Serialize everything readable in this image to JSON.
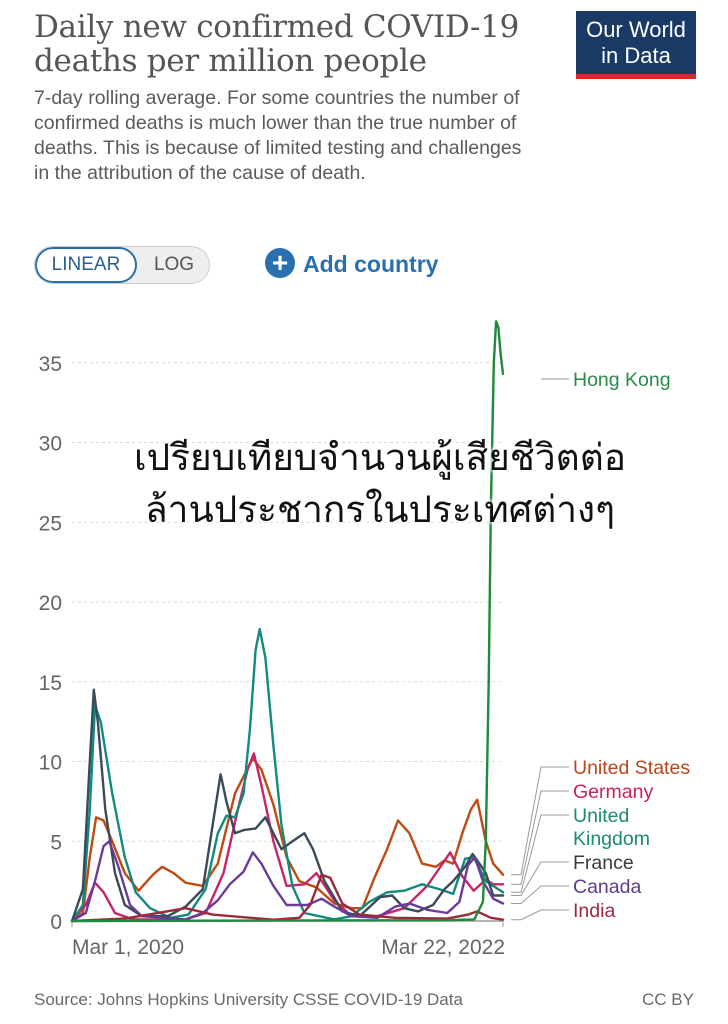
{
  "header": {
    "title": "Daily new confirmed COVID-19 deaths per million people",
    "subtitle": "7-day rolling average. For some countries the number of confirmed deaths is much lower than the true number of deaths. This is because of limited testing and challenges in the attribution of the cause of death.",
    "logo_line1": "Our World",
    "logo_line2": "in Data",
    "logo_bg": "#1a3a66",
    "logo_accent": "#d42b2b"
  },
  "controls": {
    "linear_label": "LINEAR",
    "log_label": "LOG",
    "add_country_label": "Add country",
    "add_icon": "plus-circle-icon",
    "accent": "#2a6fb0"
  },
  "overlay_text": {
    "line1": "เปรียบเทียบจำนวนผู้เสียชีวิตต่อ",
    "line2": "ล้านประชากรในประเทศต่างๆ"
  },
  "footer": {
    "source": "Source: Johns Hopkins University CSSE COVID-19 Data",
    "license": "CC BY"
  },
  "chart_data": {
    "type": "line",
    "title": "Daily new confirmed COVID-19 deaths per million people",
    "x_start_label": "Mar 1, 2020",
    "x_end_label": "Mar 22, 2022",
    "x_range": [
      "2020-03-01",
      "2022-03-22"
    ],
    "ylim": [
      0,
      38
    ],
    "y_ticks": [
      0,
      5,
      10,
      15,
      20,
      25,
      30,
      35
    ],
    "grid": "horizontal dashed",
    "legend": "right, labels at line ends",
    "series": [
      {
        "name": "Hong Kong",
        "color": "#1d8a3c",
        "label_color": "#2a8a4a",
        "points": [
          [
            "2020-03-01",
            0
          ],
          [
            "2021-12-15",
            0.05
          ],
          [
            "2022-01-31",
            0.1
          ],
          [
            "2022-02-15",
            1.2
          ],
          [
            "2022-02-20",
            5
          ],
          [
            "2022-02-25",
            15
          ],
          [
            "2022-03-01",
            26
          ],
          [
            "2022-03-06",
            35
          ],
          [
            "2022-03-10",
            37.6
          ],
          [
            "2022-03-14",
            37.2
          ],
          [
            "2022-03-18",
            35.5
          ],
          [
            "2022-03-22",
            34.3
          ]
        ]
      },
      {
        "name": "United States",
        "color": "#bf4a12",
        "label_color": "#b8461b",
        "points": [
          [
            "2020-03-01",
            0
          ],
          [
            "2020-03-20",
            0.5
          ],
          [
            "2020-04-01",
            4
          ],
          [
            "2020-04-12",
            6.5
          ],
          [
            "2020-04-25",
            6.3
          ],
          [
            "2020-05-10",
            5
          ],
          [
            "2020-06-01",
            3
          ],
          [
            "2020-06-25",
            1.9
          ],
          [
            "2020-07-20",
            2.9
          ],
          [
            "2020-08-05",
            3.4
          ],
          [
            "2020-08-25",
            3
          ],
          [
            "2020-09-15",
            2.4
          ],
          [
            "2020-10-15",
            2.2
          ],
          [
            "2020-11-10",
            3.6
          ],
          [
            "2020-12-10",
            8
          ],
          [
            "2021-01-10",
            10.2
          ],
          [
            "2021-01-25",
            9.5
          ],
          [
            "2021-02-15",
            7.3
          ],
          [
            "2021-03-10",
            4
          ],
          [
            "2021-04-01",
            2.5
          ],
          [
            "2021-05-01",
            2.1
          ],
          [
            "2021-06-01",
            1.1
          ],
          [
            "2021-07-01",
            0.8
          ],
          [
            "2021-07-20",
            0.8
          ],
          [
            "2021-08-10",
            2.7
          ],
          [
            "2021-09-01",
            4.5
          ],
          [
            "2021-09-20",
            6.3
          ],
          [
            "2021-10-10",
            5.5
          ],
          [
            "2021-11-01",
            3.6
          ],
          [
            "2021-11-25",
            3.4
          ],
          [
            "2021-12-10",
            3.8
          ],
          [
            "2021-12-25",
            3.6
          ],
          [
            "2022-01-10",
            5.5
          ],
          [
            "2022-01-25",
            7
          ],
          [
            "2022-02-05",
            7.6
          ],
          [
            "2022-02-20",
            5
          ],
          [
            "2022-03-05",
            3.6
          ],
          [
            "2022-03-22",
            2.9
          ]
        ]
      },
      {
        "name": "Germany",
        "color": "#c7246a",
        "label_color": "#c2245f",
        "points": [
          [
            "2020-03-01",
            0
          ],
          [
            "2020-03-25",
            1
          ],
          [
            "2020-04-10",
            2.4
          ],
          [
            "2020-04-25",
            1.8
          ],
          [
            "2020-05-15",
            0.5
          ],
          [
            "2020-06-15",
            0.1
          ],
          [
            "2020-09-15",
            0.1
          ],
          [
            "2020-10-20",
            0.5
          ],
          [
            "2020-11-20",
            3
          ],
          [
            "2020-12-15",
            7
          ],
          [
            "2021-01-01",
            9.5
          ],
          [
            "2021-01-12",
            10.5
          ],
          [
            "2021-01-25",
            8.5
          ],
          [
            "2021-02-15",
            5
          ],
          [
            "2021-03-10",
            2.2
          ],
          [
            "2021-04-10",
            2.3
          ],
          [
            "2021-05-01",
            3
          ],
          [
            "2021-06-01",
            1.3
          ],
          [
            "2021-07-01",
            0.3
          ],
          [
            "2021-08-15",
            0.3
          ],
          [
            "2021-10-01",
            0.8
          ],
          [
            "2021-11-10",
            2.2
          ],
          [
            "2021-12-01",
            3.3
          ],
          [
            "2021-12-20",
            4.3
          ],
          [
            "2022-01-10",
            2.8
          ],
          [
            "2022-01-30",
            1.9
          ],
          [
            "2022-02-20",
            2.6
          ],
          [
            "2022-03-05",
            2.3
          ],
          [
            "2022-03-22",
            2.3
          ]
        ]
      },
      {
        "name": "United Kingdom",
        "color": "#128a7e",
        "label_color": "#1a8a74",
        "points": [
          [
            "2020-03-01",
            0
          ],
          [
            "2020-03-20",
            1
          ],
          [
            "2020-04-01",
            7
          ],
          [
            "2020-04-10",
            13.5
          ],
          [
            "2020-04-20",
            12.5
          ],
          [
            "2020-05-10",
            8
          ],
          [
            "2020-06-01",
            4
          ],
          [
            "2020-06-20",
            1.8
          ],
          [
            "2020-07-15",
            0.8
          ],
          [
            "2020-08-20",
            0.2
          ],
          [
            "2020-09-20",
            0.4
          ],
          [
            "2020-10-20",
            2
          ],
          [
            "2020-11-10",
            5.5
          ],
          [
            "2020-11-25",
            6.6
          ],
          [
            "2020-12-10",
            6.5
          ],
          [
            "2020-12-25",
            8
          ],
          [
            "2021-01-05",
            12
          ],
          [
            "2021-01-15",
            17
          ],
          [
            "2021-01-22",
            18.3
          ],
          [
            "2021-02-01",
            16.5
          ],
          [
            "2021-02-15",
            11
          ],
          [
            "2021-03-01",
            6
          ],
          [
            "2021-03-20",
            2.2
          ],
          [
            "2021-04-10",
            0.5
          ],
          [
            "2021-06-01",
            0.1
          ],
          [
            "2021-07-01",
            0.3
          ],
          [
            "2021-08-01",
            1.2
          ],
          [
            "2021-09-01",
            1.8
          ],
          [
            "2021-10-01",
            1.9
          ],
          [
            "2021-11-01",
            2.3
          ],
          [
            "2021-12-01",
            2
          ],
          [
            "2021-12-25",
            1.7
          ],
          [
            "2022-01-15",
            3.9
          ],
          [
            "2022-01-30",
            4
          ],
          [
            "2022-02-20",
            2.5
          ],
          [
            "2022-03-22",
            1.8
          ]
        ]
      },
      {
        "name": "France",
        "color": "#3b4a5a",
        "label_color": "#3b3b3b",
        "points": [
          [
            "2020-03-01",
            0
          ],
          [
            "2020-03-20",
            2
          ],
          [
            "2020-04-01",
            10
          ],
          [
            "2020-04-08",
            14.5
          ],
          [
            "2020-04-15",
            12.5
          ],
          [
            "2020-04-28",
            7
          ],
          [
            "2020-05-15",
            3
          ],
          [
            "2020-06-01",
            1
          ],
          [
            "2020-07-01",
            0.3
          ],
          [
            "2020-08-15",
            0.3
          ],
          [
            "2020-09-15",
            0.9
          ],
          [
            "2020-10-15",
            2
          ],
          [
            "2020-11-01",
            6
          ],
          [
            "2020-11-15",
            9.2
          ],
          [
            "2020-11-25",
            7.5
          ],
          [
            "2020-12-10",
            5.5
          ],
          [
            "2020-12-25",
            5.7
          ],
          [
            "2021-01-15",
            5.8
          ],
          [
            "2021-02-01",
            6.5
          ],
          [
            "2021-02-15",
            5.5
          ],
          [
            "2021-03-01",
            4.5
          ],
          [
            "2021-03-20",
            5
          ],
          [
            "2021-04-10",
            5.5
          ],
          [
            "2021-04-25",
            4.5
          ],
          [
            "2021-05-15",
            2.5
          ],
          [
            "2021-06-15",
            0.6
          ],
          [
            "2021-07-15",
            0.3
          ],
          [
            "2021-08-20",
            1.5
          ],
          [
            "2021-09-10",
            1.6
          ],
          [
            "2021-10-01",
            0.8
          ],
          [
            "2021-10-25",
            0.6
          ],
          [
            "2021-11-20",
            1
          ],
          [
            "2021-12-10",
            2
          ],
          [
            "2021-12-25",
            2.5
          ],
          [
            "2022-01-15",
            3.4
          ],
          [
            "2022-01-28",
            4.2
          ],
          [
            "2022-02-05",
            3.8
          ],
          [
            "2022-02-20",
            3
          ],
          [
            "2022-03-05",
            1.6
          ],
          [
            "2022-03-22",
            1.6
          ]
        ]
      },
      {
        "name": "Canada",
        "color": "#6b3a9a",
        "label_color": "#5e3b8c",
        "points": [
          [
            "2020-03-01",
            0
          ],
          [
            "2020-03-25",
            0.5
          ],
          [
            "2020-04-10",
            2.5
          ],
          [
            "2020-04-25",
            4.7
          ],
          [
            "2020-05-05",
            5
          ],
          [
            "2020-05-20",
            3.5
          ],
          [
            "2020-06-10",
            1
          ],
          [
            "2020-07-01",
            0.3
          ],
          [
            "2020-09-15",
            0.1
          ],
          [
            "2020-10-15",
            0.5
          ],
          [
            "2020-11-10",
            1.3
          ],
          [
            "2020-12-01",
            2.3
          ],
          [
            "2020-12-25",
            3.1
          ],
          [
            "2021-01-10",
            4.3
          ],
          [
            "2021-01-25",
            3.6
          ],
          [
            "2021-02-15",
            2.2
          ],
          [
            "2021-03-10",
            1
          ],
          [
            "2021-04-15",
            1
          ],
          [
            "2021-05-10",
            1.4
          ],
          [
            "2021-06-01",
            0.9
          ],
          [
            "2021-07-01",
            0.3
          ],
          [
            "2021-08-15",
            0.2
          ],
          [
            "2021-09-15",
            0.9
          ],
          [
            "2021-10-10",
            1.1
          ],
          [
            "2021-11-10",
            0.7
          ],
          [
            "2021-12-15",
            0.5
          ],
          [
            "2022-01-05",
            1.2
          ],
          [
            "2022-01-20",
            3.5
          ],
          [
            "2022-02-01",
            4
          ],
          [
            "2022-02-15",
            2.5
          ],
          [
            "2022-03-05",
            1.4
          ],
          [
            "2022-03-22",
            1.1
          ]
        ]
      },
      {
        "name": "India",
        "color": "#9b2a3a",
        "label_color": "#9b2a45",
        "points": [
          [
            "2020-03-01",
            0
          ],
          [
            "2020-06-01",
            0.15
          ],
          [
            "2020-09-15",
            0.8
          ],
          [
            "2020-11-01",
            0.4
          ],
          [
            "2021-02-15",
            0.08
          ],
          [
            "2021-04-01",
            0.2
          ],
          [
            "2021-04-20",
            1
          ],
          [
            "2021-05-10",
            2.9
          ],
          [
            "2021-05-25",
            2.7
          ],
          [
            "2021-06-15",
            1.1
          ],
          [
            "2021-07-15",
            0.4
          ],
          [
            "2021-09-15",
            0.2
          ],
          [
            "2021-12-15",
            0.15
          ],
          [
            "2022-01-20",
            0.4
          ],
          [
            "2022-02-05",
            0.6
          ],
          [
            "2022-03-01",
            0.2
          ],
          [
            "2022-03-22",
            0.08
          ]
        ]
      }
    ]
  }
}
